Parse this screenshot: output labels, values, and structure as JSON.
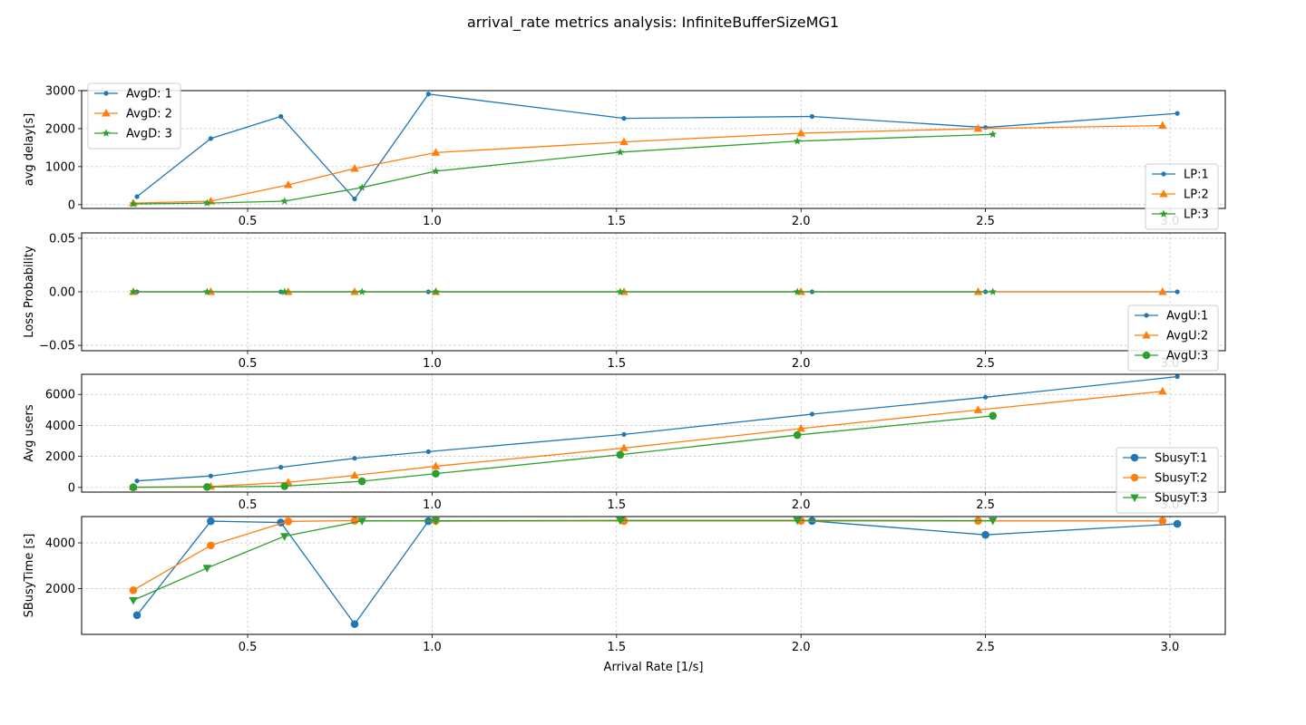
{
  "figure": {
    "title": "arrival_rate metrics analysis: InfiniteBufferSizeMG1"
  },
  "colors": {
    "s1": "#1f77b4",
    "s2": "#ff7f0e",
    "s3": "#2ca02c",
    "grid": "#b0b0b0"
  },
  "chart_data": [
    {
      "type": "line",
      "ylabel": "avg delay[s]",
      "xlim": [
        0.05,
        3.15
      ],
      "ylim": [
        -100,
        3000
      ],
      "xticks": [
        0.5,
        1.0,
        1.5,
        2.0,
        2.5,
        3.0
      ],
      "xticklabels": [
        "0.5",
        "1.0",
        "1.5",
        "2.0",
        "2.5",
        "3.0"
      ],
      "yticks": [
        0,
        1000,
        2000,
        3000
      ],
      "yticklabels": [
        "0",
        "1000",
        "2000",
        "3000"
      ],
      "grid": true,
      "legends": [
        {
          "location": "upper-left",
          "entries": [
            {
              "label": "AvgD: 1",
              "color": "#1f77b4",
              "marker": "dot"
            },
            {
              "label": "AvgD: 2",
              "color": "#ff7f0e",
              "marker": "triangle-up"
            },
            {
              "label": "AvgD: 3",
              "color": "#2ca02c",
              "marker": "star"
            }
          ]
        }
      ],
      "series": [
        {
          "name": "AvgD: 1",
          "color": "#1f77b4",
          "marker": "dot",
          "x": [
            0.2,
            0.4,
            0.59,
            0.79,
            0.99,
            1.52,
            2.03,
            2.5,
            3.02
          ],
          "y": [
            210,
            1740,
            2320,
            150,
            2910,
            2270,
            2320,
            2030,
            2400
          ]
        },
        {
          "name": "AvgD: 2",
          "color": "#ff7f0e",
          "marker": "triangle-up",
          "x": [
            0.19,
            0.4,
            0.61,
            0.79,
            1.01,
            1.52,
            2.0,
            2.48,
            2.98
          ],
          "y": [
            40,
            90,
            520,
            950,
            1370,
            1650,
            1880,
            2000,
            2080
          ]
        },
        {
          "name": "AvgD: 3",
          "color": "#2ca02c",
          "marker": "star",
          "x": [
            0.19,
            0.39,
            0.6,
            0.81,
            1.01,
            1.51,
            1.99,
            2.52
          ],
          "y": [
            20,
            40,
            90,
            450,
            880,
            1380,
            1670,
            1850
          ]
        }
      ]
    },
    {
      "type": "line",
      "ylabel": "Loss Probability",
      "xlim": [
        0.05,
        3.15
      ],
      "ylim": [
        -0.055,
        0.055
      ],
      "xticks": [
        0.5,
        1.0,
        1.5,
        2.0,
        2.5,
        3.0
      ],
      "xticklabels": [
        "0.5",
        "1.0",
        "1.5",
        "2.0",
        "2.5",
        "3.0"
      ],
      "yticks": [
        -0.05,
        0.0,
        0.05
      ],
      "yticklabels": [
        "−0.05",
        "0.00",
        "0.05"
      ],
      "grid": true,
      "legends": [
        {
          "location": "lower-right-overlap-above",
          "entries": [
            {
              "label": "LP:1",
              "color": "#1f77b4",
              "marker": "dot"
            },
            {
              "label": "LP:2",
              "color": "#ff7f0e",
              "marker": "triangle-up"
            },
            {
              "label": "LP:3",
              "color": "#2ca02c",
              "marker": "star"
            }
          ]
        }
      ],
      "series": [
        {
          "name": "LP:1",
          "color": "#1f77b4",
          "marker": "dot",
          "x": [
            0.2,
            0.4,
            0.59,
            0.79,
            0.99,
            1.52,
            2.03,
            2.5,
            3.02
          ],
          "y": [
            0,
            0,
            0,
            0,
            0,
            0,
            0,
            0,
            0
          ]
        },
        {
          "name": "LP:2",
          "color": "#ff7f0e",
          "marker": "triangle-up",
          "x": [
            0.19,
            0.4,
            0.61,
            0.79,
            1.01,
            1.52,
            2.0,
            2.48,
            2.98
          ],
          "y": [
            0,
            0,
            0,
            0,
            0,
            0,
            0,
            0,
            0
          ]
        },
        {
          "name": "LP:3",
          "color": "#2ca02c",
          "marker": "star",
          "x": [
            0.19,
            0.39,
            0.6,
            0.81,
            1.01,
            1.51,
            1.99,
            2.52
          ],
          "y": [
            0,
            0,
            0,
            0,
            0,
            0,
            0,
            0
          ]
        }
      ]
    },
    {
      "type": "line",
      "ylabel": "Avg users",
      "xlim": [
        0.05,
        3.15
      ],
      "ylim": [
        -300,
        7300
      ],
      "xticks": [
        0.5,
        1.0,
        1.5,
        2.0,
        2.5,
        3.0
      ],
      "xticklabels": [
        "0.5",
        "1.0",
        "1.5",
        "2.0",
        "2.5",
        "3.0"
      ],
      "yticks": [
        0,
        2000,
        4000,
        6000
      ],
      "yticklabels": [
        "0",
        "2000",
        "4000",
        "6000"
      ],
      "grid": true,
      "legends": [
        {
          "location": "lower-right-overlap-above",
          "entries": [
            {
              "label": "AvgU:1",
              "color": "#1f77b4",
              "marker": "dot"
            },
            {
              "label": "AvgU:2",
              "color": "#ff7f0e",
              "marker": "triangle-up"
            },
            {
              "label": "AvgU:3",
              "color": "#2ca02c",
              "marker": "circle"
            }
          ]
        }
      ],
      "series": [
        {
          "name": "AvgU:1",
          "color": "#1f77b4",
          "marker": "dot",
          "x": [
            0.2,
            0.4,
            0.59,
            0.79,
            0.99,
            1.52,
            2.03,
            2.5,
            3.02
          ],
          "y": [
            420,
            740,
            1300,
            1880,
            2310,
            3420,
            4730,
            5820,
            7150
          ]
        },
        {
          "name": "AvgU:2",
          "color": "#ff7f0e",
          "marker": "triangle-up",
          "x": [
            0.19,
            0.4,
            0.61,
            0.79,
            1.01,
            1.52,
            2.0,
            2.48,
            2.98
          ],
          "y": [
            20,
            60,
            330,
            780,
            1370,
            2540,
            3800,
            5000,
            6200
          ]
        },
        {
          "name": "AvgU:3",
          "color": "#2ca02c",
          "marker": "circle",
          "x": [
            0.19,
            0.39,
            0.6,
            0.81,
            1.01,
            1.51,
            1.99,
            2.52
          ],
          "y": [
            10,
            30,
            80,
            400,
            890,
            2110,
            3380,
            4620
          ]
        }
      ]
    },
    {
      "type": "line",
      "ylabel": "SBusyTime [s]",
      "xlabel": "Arrival Rate [1/s]",
      "xlim": [
        0.05,
        3.15
      ],
      "ylim": [
        0,
        5150
      ],
      "xticks": [
        0.5,
        1.0,
        1.5,
        2.0,
        2.5,
        3.0
      ],
      "xticklabels": [
        "0.5",
        "1.0",
        "1.5",
        "2.0",
        "2.5",
        "3.0"
      ],
      "yticks": [
        2000,
        4000
      ],
      "yticklabels": [
        "2000",
        "4000"
      ],
      "grid": true,
      "legends": [
        {
          "location": "lower-right-overlap-above",
          "entries": [
            {
              "label": "SbusyT:1",
              "color": "#1f77b4",
              "marker": "circle"
            },
            {
              "label": "SbusyT:2",
              "color": "#ff7f0e",
              "marker": "circle"
            },
            {
              "label": "SbusyT:3",
              "color": "#2ca02c",
              "marker": "triangle-down"
            }
          ]
        }
      ],
      "series": [
        {
          "name": "SbusyT:1",
          "color": "#1f77b4",
          "marker": "circle",
          "x": [
            0.2,
            0.4,
            0.59,
            0.79,
            0.99,
            1.52,
            2.03,
            2.5,
            3.02
          ],
          "y": [
            840,
            4950,
            4890,
            450,
            4950,
            4960,
            4960,
            4350,
            4830
          ]
        },
        {
          "name": "SbusyT:2",
          "color": "#ff7f0e",
          "marker": "circle",
          "x": [
            0.19,
            0.4,
            0.61,
            0.79,
            1.01,
            1.52,
            2.0,
            2.48,
            2.98
          ],
          "y": [
            1930,
            3890,
            4940,
            4970,
            4960,
            4960,
            4960,
            4960,
            4960
          ]
        },
        {
          "name": "SbusyT:3",
          "color": "#2ca02c",
          "marker": "triangle-down",
          "x": [
            0.19,
            0.39,
            0.6,
            0.81,
            1.01,
            1.51,
            1.99,
            2.52
          ],
          "y": [
            1490,
            2900,
            4290,
            4960,
            4970,
            4980,
            4980,
            4970
          ]
        }
      ]
    }
  ]
}
